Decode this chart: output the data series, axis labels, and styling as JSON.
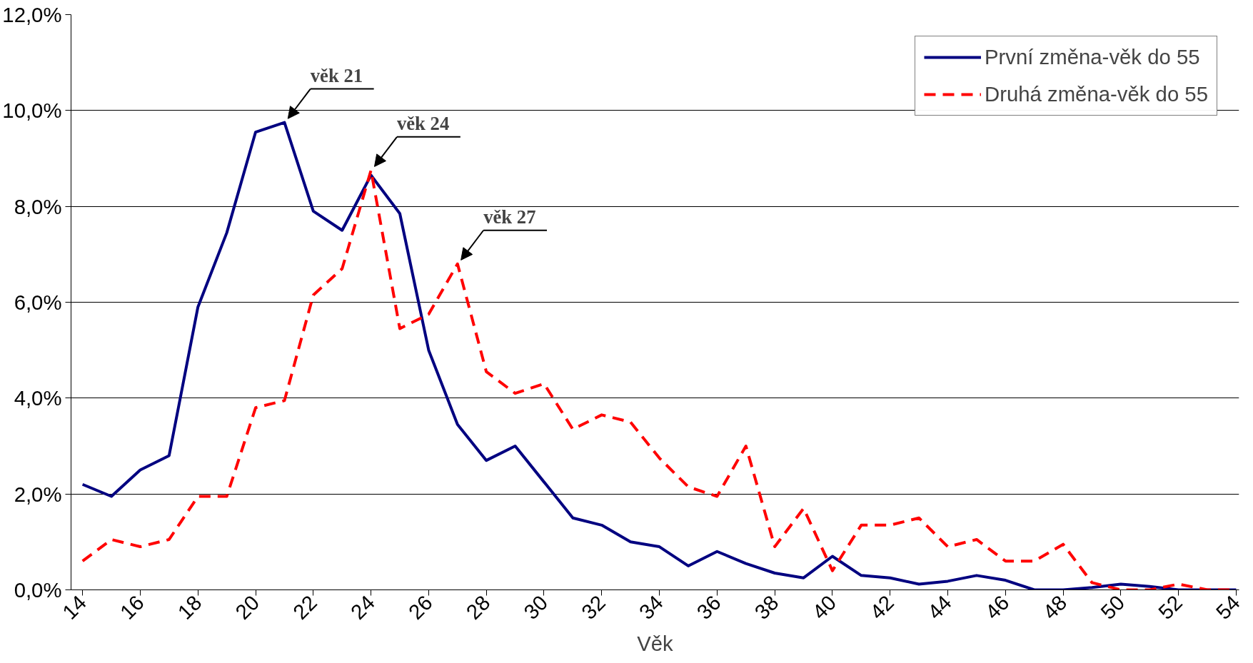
{
  "chart_data": {
    "type": "line",
    "xlabel": "Věk",
    "x": [
      14,
      15,
      16,
      17,
      18,
      19,
      20,
      21,
      22,
      23,
      24,
      25,
      26,
      27,
      28,
      29,
      30,
      31,
      32,
      33,
      34,
      35,
      36,
      37,
      38,
      39,
      40,
      41,
      42,
      43,
      44,
      45,
      46,
      47,
      48,
      49,
      50,
      51,
      52,
      53,
      54
    ],
    "xlim": [
      13.6,
      54.1
    ],
    "xticks": [
      14,
      16,
      18,
      20,
      22,
      24,
      26,
      28,
      30,
      32,
      34,
      36,
      38,
      40,
      42,
      44,
      46,
      48,
      50,
      52,
      54
    ],
    "ylim": [
      0,
      12
    ],
    "yticks": [
      {
        "value": 0,
        "label": "0,0%"
      },
      {
        "value": 2,
        "label": "2,0%"
      },
      {
        "value": 4,
        "label": "4,0%"
      },
      {
        "value": 6,
        "label": "6,0%"
      },
      {
        "value": 8,
        "label": "8,0%"
      },
      {
        "value": 10,
        "label": "10,0%"
      },
      {
        "value": 12,
        "label": "12,0%"
      }
    ],
    "grid": "y",
    "legend": "top right",
    "marker": "none",
    "series": [
      {
        "name": "První změna-věk do 55",
        "color": "#000080",
        "line_style": "solid",
        "values": [
          2.2,
          1.95,
          2.5,
          2.8,
          5.9,
          7.45,
          9.55,
          9.75,
          7.9,
          7.5,
          8.65,
          7.85,
          5.0,
          3.45,
          2.7,
          3.0,
          2.25,
          1.5,
          1.35,
          1.0,
          0.9,
          0.5,
          0.8,
          0.55,
          0.35,
          0.25,
          0.7,
          0.3,
          0.25,
          0.12,
          0.18,
          0.3,
          0.2,
          0.0,
          0.0,
          0.05,
          0.12,
          0.07,
          0.0,
          0.0,
          0.0
        ]
      },
      {
        "name": "Druhá změna-věk do 55",
        "color": "#ff0000",
        "line_style": "dashed",
        "values": [
          0.6,
          1.05,
          0.9,
          1.05,
          1.95,
          1.95,
          3.8,
          3.95,
          6.15,
          6.7,
          8.75,
          5.45,
          5.75,
          6.8,
          4.55,
          4.1,
          4.3,
          3.35,
          3.65,
          3.5,
          2.75,
          2.15,
          1.95,
          3.0,
          0.9,
          1.7,
          0.4,
          1.35,
          1.35,
          1.5,
          0.9,
          1.05,
          0.6,
          0.6,
          0.95,
          0.15,
          0.0,
          0.0,
          0.12,
          0.0,
          0.0
        ]
      }
    ],
    "annotations": [
      {
        "text": "věk 21",
        "x": 21,
        "y": 9.75
      },
      {
        "text": "věk 24",
        "x": 24,
        "y": 8.75
      },
      {
        "text": "věk 27",
        "x": 27,
        "y": 6.8
      }
    ]
  }
}
